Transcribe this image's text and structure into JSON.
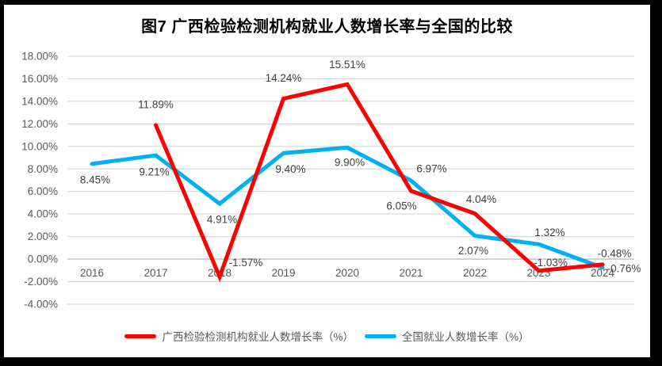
{
  "title": "图7 广西检验检测机构就业人数增长率与全国的比较",
  "colors": {
    "guangxi_line": "#FF0000",
    "national_line": "#00B0F0",
    "gridline": "#D9D9D9",
    "zero_axis_line": "#BFBFBF",
    "axis_text": "#595959",
    "data_label_text": "#404040",
    "frame": "#000000",
    "chart_background": "#FFFFFF",
    "title_text": "#000000"
  },
  "chart_data": {
    "type": "line",
    "title": "图7 广西检验检测机构就业人数增长率与全国的比较",
    "categories": [
      "2016",
      "2017",
      "2018",
      "2019",
      "2020",
      "2021",
      "2022",
      "2023",
      "2024"
    ],
    "series": [
      {
        "id": "guangxi",
        "name": "广西检验检测机构就业人数增长率（%）",
        "color": "#FF0000",
        "values": [
          null,
          11.89,
          -1.57,
          14.24,
          15.51,
          6.05,
          4.04,
          -1.03,
          -0.48
        ],
        "label_offsets": [
          [
            0,
            0
          ],
          [
            0,
            -26
          ],
          [
            33,
            -18
          ],
          [
            0,
            -26
          ],
          [
            0,
            -25
          ],
          [
            -12,
            19
          ],
          [
            8,
            -18
          ],
          [
            15,
            -10
          ],
          [
            15,
            -14
          ]
        ]
      },
      {
        "id": "national",
        "name": "全国就业人数增长率（%）",
        "color": "#00B0F0",
        "values": [
          8.45,
          9.21,
          4.91,
          9.4,
          9.9,
          6.97,
          2.07,
          1.32,
          -0.76
        ],
        "label_offsets": [
          [
            4,
            20
          ],
          [
            -2,
            21
          ],
          [
            3,
            20
          ],
          [
            9,
            20
          ],
          [
            3,
            19
          ],
          [
            26,
            -15
          ],
          [
            -2,
            19
          ],
          [
            14,
            -15
          ],
          [
            27,
            1
          ]
        ]
      }
    ],
    "yticks": [
      {
        "label": "18.00%",
        "value": 18
      },
      {
        "label": "16.00%",
        "value": 16
      },
      {
        "label": "14.00%",
        "value": 14
      },
      {
        "label": "12.00%",
        "value": 12
      },
      {
        "label": "10.00%",
        "value": 10
      },
      {
        "label": "8.00%",
        "value": 8
      },
      {
        "label": "6.00%",
        "value": 6
      },
      {
        "label": "4.00%",
        "value": 4
      },
      {
        "label": "2.00%",
        "value": 2
      },
      {
        "label": "0.00%",
        "value": 0
      },
      {
        "label": "-2.00%",
        "value": -2
      },
      {
        "label": "-4.00%",
        "value": -4
      }
    ],
    "ylim": [
      -4,
      18
    ],
    "grid": true,
    "legend_position": "bottom",
    "data_label_format": "0.00%"
  }
}
